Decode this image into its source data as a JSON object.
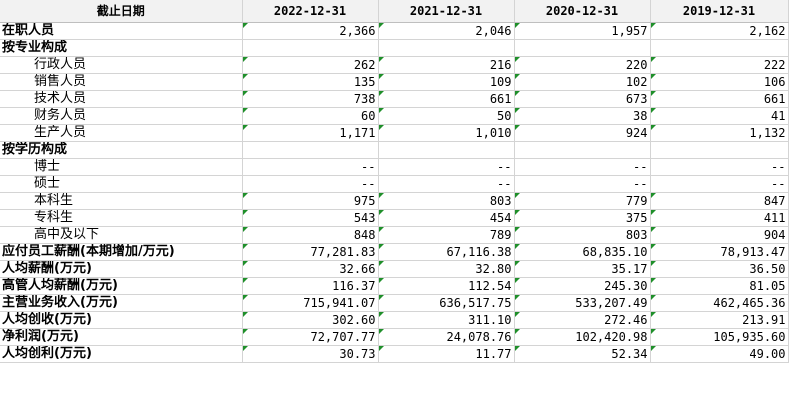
{
  "header": {
    "label": "截止日期",
    "dates": [
      "2022-12-31",
      "2021-12-31",
      "2020-12-31",
      "2019-12-31"
    ]
  },
  "rows": [
    {
      "label": "在职人员",
      "level": "top",
      "values": [
        "2,366",
        "2,046",
        "1,957",
        "2,162"
      ]
    },
    {
      "label": "按专业构成",
      "level": "top",
      "values": [
        "",
        "",
        "",
        ""
      ]
    },
    {
      "label": "行政人员",
      "level": "sub",
      "values": [
        "262",
        "216",
        "220",
        "222"
      ]
    },
    {
      "label": "销售人员",
      "level": "sub",
      "values": [
        "135",
        "109",
        "102",
        "106"
      ]
    },
    {
      "label": "技术人员",
      "level": "sub",
      "values": [
        "738",
        "661",
        "673",
        "661"
      ]
    },
    {
      "label": "财务人员",
      "level": "sub",
      "values": [
        "60",
        "50",
        "38",
        "41"
      ]
    },
    {
      "label": "生产人员",
      "level": "sub",
      "values": [
        "1,171",
        "1,010",
        "924",
        "1,132"
      ]
    },
    {
      "label": "按学历构成",
      "level": "top",
      "values": [
        "",
        "",
        "",
        ""
      ]
    },
    {
      "label": "博士",
      "level": "sub",
      "values": [
        "--",
        "--",
        "--",
        "--"
      ]
    },
    {
      "label": "硕士",
      "level": "sub",
      "values": [
        "--",
        "--",
        "--",
        "--"
      ]
    },
    {
      "label": "本科生",
      "level": "sub",
      "values": [
        "975",
        "803",
        "779",
        "847"
      ]
    },
    {
      "label": "专科生",
      "level": "sub",
      "values": [
        "543",
        "454",
        "375",
        "411"
      ]
    },
    {
      "label": "高中及以下",
      "level": "sub",
      "values": [
        "848",
        "789",
        "803",
        "904"
      ]
    },
    {
      "label": "应付员工薪酬(本期增加/万元)",
      "level": "top",
      "values": [
        "77,281.83",
        "67,116.38",
        "68,835.10",
        "78,913.47"
      ]
    },
    {
      "label": "人均薪酬(万元)",
      "level": "top",
      "values": [
        "32.66",
        "32.80",
        "35.17",
        "36.50"
      ]
    },
    {
      "label": "高管人均薪酬(万元)",
      "level": "top",
      "values": [
        "116.37",
        "112.54",
        "245.30",
        "81.05"
      ]
    },
    {
      "label": "主营业务收入(万元)",
      "level": "top",
      "values": [
        "715,941.07",
        "636,517.75",
        "533,207.49",
        "462,465.36"
      ]
    },
    {
      "label": "人均创收(万元)",
      "level": "top",
      "values": [
        "302.60",
        "311.10",
        "272.46",
        "213.91"
      ]
    },
    {
      "label": "净利润(万元)",
      "level": "top",
      "values": [
        "72,707.77",
        "24,078.76",
        "102,420.98",
        "105,935.60"
      ]
    },
    {
      "label": "人均创利(万元)",
      "level": "top",
      "values": [
        "30.73",
        "11.77",
        "52.34",
        "49.00"
      ]
    }
  ],
  "colors": {
    "header_bg": "#f2f2f2",
    "gridline": "#d4d4d4",
    "cell_marker": "#1f8f2a"
  }
}
